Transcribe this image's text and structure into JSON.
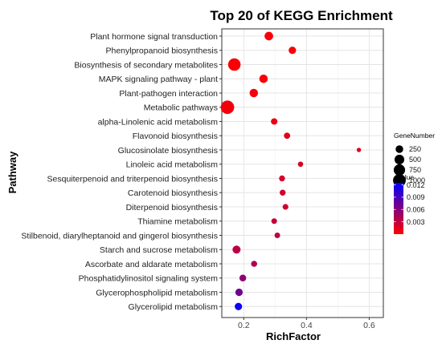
{
  "chart_data": {
    "type": "scatter",
    "title": "Top 20 of KEGG Enrichment",
    "xlabel": "RichFactor",
    "ylabel": "Pathway",
    "xlim": [
      0.13,
      0.645
    ],
    "x_ticks": [
      0.2,
      0.4,
      0.6
    ],
    "x_tick_labels": [
      "0.2",
      "0.4",
      "0.6"
    ],
    "grid": true,
    "legend_position": "right",
    "size_legend": {
      "title": "GeneNumber",
      "entries": [
        {
          "label": "250",
          "value": 250
        },
        {
          "label": "500",
          "value": 500
        },
        {
          "label": "750",
          "value": 750
        },
        {
          "label": "1000",
          "value": 1000
        }
      ]
    },
    "color_legend": {
      "title": "qvalue",
      "min": 0.0,
      "max": 0.0125,
      "ticks": [
        {
          "label": "0.012",
          "value": 0.012
        },
        {
          "label": "0.009",
          "value": 0.009
        },
        {
          "label": "0.006",
          "value": 0.006
        },
        {
          "label": "0.003",
          "value": 0.003
        }
      ],
      "color_low": "#ff0000",
      "color_high": "#0000ff"
    },
    "points": [
      {
        "pathway": "Plant hormone signal transduction",
        "richfactor": 0.28,
        "gene_number": 350,
        "qvalue": 0.0003
      },
      {
        "pathway": "Phenylpropanoid biosynthesis",
        "richfactor": 0.355,
        "gene_number": 230,
        "qvalue": 0.0003
      },
      {
        "pathway": "Biosynthesis of secondary metabolites",
        "richfactor": 0.17,
        "gene_number": 950,
        "qvalue": 0.0003
      },
      {
        "pathway": "MAPK signaling pathway - plant",
        "richfactor": 0.263,
        "gene_number": 330,
        "qvalue": 0.0004
      },
      {
        "pathway": "Plant-pathogen interaction",
        "richfactor": 0.232,
        "gene_number": 330,
        "qvalue": 0.0006
      },
      {
        "pathway": "Metabolic pathways",
        "richfactor": 0.148,
        "gene_number": 1150,
        "qvalue": 0.0006
      },
      {
        "pathway": "alpha-Linolenic acid metabolism",
        "richfactor": 0.297,
        "gene_number": 150,
        "qvalue": 0.0011
      },
      {
        "pathway": "Flavonoid biosynthesis",
        "richfactor": 0.338,
        "gene_number": 130,
        "qvalue": 0.0015
      },
      {
        "pathway": "Glucosinolate biosynthesis",
        "richfactor": 0.567,
        "gene_number": 30,
        "qvalue": 0.0015
      },
      {
        "pathway": "Linoleic acid metabolism",
        "richfactor": 0.381,
        "gene_number": 70,
        "qvalue": 0.0018
      },
      {
        "pathway": "Sesquiterpenoid and triterpenoid biosynthesis",
        "richfactor": 0.322,
        "gene_number": 110,
        "qvalue": 0.002
      },
      {
        "pathway": "Carotenoid biosynthesis",
        "richfactor": 0.324,
        "gene_number": 110,
        "qvalue": 0.0022
      },
      {
        "pathway": "Diterpenoid biosynthesis",
        "richfactor": 0.333,
        "gene_number": 100,
        "qvalue": 0.0024
      },
      {
        "pathway": "Thiamine metabolism",
        "richfactor": 0.297,
        "gene_number": 90,
        "qvalue": 0.0028
      },
      {
        "pathway": "Stilbenoid, diarylheptanoid and gingerol biosynthesis",
        "richfactor": 0.307,
        "gene_number": 90,
        "qvalue": 0.0032
      },
      {
        "pathway": "Starch and sucrose metabolism",
        "richfactor": 0.177,
        "gene_number": 290,
        "qvalue": 0.0034
      },
      {
        "pathway": "Ascorbate and aldarate metabolism",
        "richfactor": 0.233,
        "gene_number": 120,
        "qvalue": 0.004
      },
      {
        "pathway": "Phosphatidylinositol signaling system",
        "richfactor": 0.197,
        "gene_number": 170,
        "qvalue": 0.0055
      },
      {
        "pathway": "Glycerophospholipid metabolism",
        "richfactor": 0.185,
        "gene_number": 230,
        "qvalue": 0.007
      },
      {
        "pathway": "Glycerolipid metabolism",
        "richfactor": 0.183,
        "gene_number": 220,
        "qvalue": 0.0118
      }
    ]
  }
}
